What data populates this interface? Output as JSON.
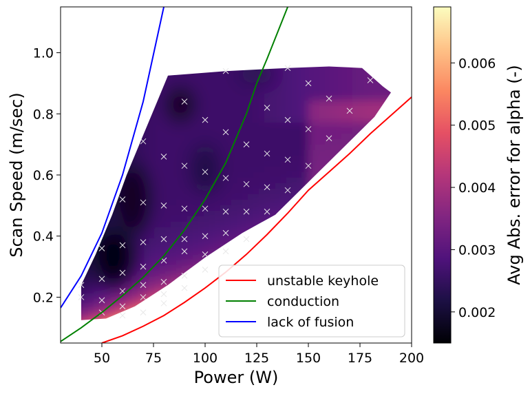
{
  "chart_data": {
    "type": "heatmap",
    "title": "",
    "xlabel": "Power (W)",
    "ylabel": "Scan Speed (m/sec)",
    "xlim": [
      30,
      200
    ],
    "ylim": [
      0.05,
      1.15
    ],
    "xticks": [
      50,
      75,
      100,
      125,
      150,
      175,
      200
    ],
    "yticks": [
      0.2,
      0.4,
      0.6,
      0.8,
      1.0
    ],
    "xtick_labels": [
      "50",
      "75",
      "100",
      "125",
      "150",
      "175",
      "200"
    ],
    "ytick_labels": [
      "0.2",
      "0.4",
      "0.6",
      "0.8",
      "1.0"
    ],
    "colorbar": {
      "label": "Avg Abs. error for alpha (-)",
      "colormap": "magma",
      "range": [
        0.0015,
        0.0069
      ],
      "ticks": [
        0.002,
        0.003,
        0.004,
        0.005,
        0.006
      ],
      "tick_labels": [
        "0.002",
        "0.003",
        "0.004",
        "0.005",
        "0.006"
      ]
    },
    "region": {
      "boundary": [
        [
          40,
          0.125
        ],
        [
          40,
          0.24
        ],
        [
          47,
          0.34
        ],
        [
          55,
          0.47
        ],
        [
          62,
          0.6
        ],
        [
          70,
          0.73
        ],
        [
          78,
          0.86
        ],
        [
          82,
          0.925
        ],
        [
          110,
          0.94
        ],
        [
          140,
          0.95
        ],
        [
          160,
          0.955
        ],
        [
          176,
          0.95
        ],
        [
          186,
          0.89
        ],
        [
          190,
          0.87
        ],
        [
          182,
          0.79
        ],
        [
          170,
          0.71
        ],
        [
          158,
          0.63
        ],
        [
          146,
          0.55
        ],
        [
          134,
          0.47
        ],
        [
          118,
          0.41
        ],
        [
          100,
          0.33
        ],
        [
          82,
          0.24
        ],
        [
          66,
          0.17
        ],
        [
          52,
          0.13
        ]
      ],
      "dark_blobs": [
        {
          "center": [
            56,
            0.33
          ],
          "radius": [
            9,
            0.09
          ],
          "value": 0.0016
        },
        {
          "center": [
            65,
            0.52
          ],
          "radius": [
            8,
            0.11
          ],
          "value": 0.0018
        },
        {
          "center": [
            88,
            0.83
          ],
          "radius": [
            6,
            0.05
          ],
          "value": 0.0017
        },
        {
          "center": [
            100,
            0.62
          ],
          "radius": [
            7,
            0.08
          ],
          "value": 0.0022
        },
        {
          "center": [
            125,
            0.93
          ],
          "radius": [
            8,
            0.03
          ],
          "value": 0.0023
        }
      ]
    },
    "sample_points": [
      [
        40,
        0.2
      ],
      [
        40,
        0.24
      ],
      [
        50,
        0.15
      ],
      [
        50,
        0.19
      ],
      [
        50,
        0.26
      ],
      [
        50,
        0.36
      ],
      [
        60,
        0.14
      ],
      [
        60,
        0.17
      ],
      [
        60,
        0.22
      ],
      [
        60,
        0.28
      ],
      [
        60,
        0.37
      ],
      [
        60,
        0.52
      ],
      [
        70,
        0.15
      ],
      [
        70,
        0.2
      ],
      [
        70,
        0.24
      ],
      [
        70,
        0.3
      ],
      [
        70,
        0.38
      ],
      [
        70,
        0.51
      ],
      [
        70,
        0.71
      ],
      [
        80,
        0.18
      ],
      [
        80,
        0.21
      ],
      [
        80,
        0.25
      ],
      [
        80,
        0.32
      ],
      [
        80,
        0.39
      ],
      [
        80,
        0.5
      ],
      [
        80,
        0.66
      ],
      [
        90,
        0.23
      ],
      [
        90,
        0.27
      ],
      [
        90,
        0.35
      ],
      [
        90,
        0.39
      ],
      [
        90,
        0.49
      ],
      [
        90,
        0.63
      ],
      [
        90,
        0.84
      ],
      [
        100,
        0.29
      ],
      [
        100,
        0.34
      ],
      [
        100,
        0.4
      ],
      [
        100,
        0.49
      ],
      [
        100,
        0.61
      ],
      [
        100,
        0.78
      ],
      [
        110,
        0.35
      ],
      [
        110,
        0.41
      ],
      [
        110,
        0.48
      ],
      [
        110,
        0.59
      ],
      [
        110,
        0.74
      ],
      [
        110,
        0.94
      ],
      [
        120,
        0.39
      ],
      [
        120,
        0.48
      ],
      [
        120,
        0.57
      ],
      [
        120,
        0.7
      ],
      [
        130,
        0.48
      ],
      [
        130,
        0.56
      ],
      [
        130,
        0.67
      ],
      [
        130,
        0.82
      ],
      [
        140,
        0.55
      ],
      [
        140,
        0.65
      ],
      [
        140,
        0.78
      ],
      [
        140,
        0.95
      ],
      [
        150,
        0.63
      ],
      [
        150,
        0.75
      ],
      [
        150,
        0.9
      ],
      [
        160,
        0.72
      ],
      [
        160,
        0.85
      ],
      [
        170,
        0.81
      ],
      [
        180,
        0.91
      ]
    ],
    "series": [
      {
        "name": "unstable keyhole",
        "color": "#ff0000",
        "points": [
          [
            50,
            0.05
          ],
          [
            60,
            0.074
          ],
          [
            70,
            0.105
          ],
          [
            80,
            0.14
          ],
          [
            90,
            0.183
          ],
          [
            100,
            0.23
          ],
          [
            110,
            0.282
          ],
          [
            120,
            0.34
          ],
          [
            130,
            0.405
          ],
          [
            140,
            0.475
          ],
          [
            150,
            0.55
          ],
          [
            160,
            0.61
          ],
          [
            170,
            0.67
          ],
          [
            180,
            0.735
          ],
          [
            190,
            0.795
          ],
          [
            200,
            0.855
          ]
        ]
      },
      {
        "name": "conduction",
        "color": "#008000",
        "points": [
          [
            30,
            0.055
          ],
          [
            40,
            0.1
          ],
          [
            50,
            0.15
          ],
          [
            60,
            0.205
          ],
          [
            70,
            0.265
          ],
          [
            80,
            0.335
          ],
          [
            90,
            0.42
          ],
          [
            100,
            0.52
          ],
          [
            110,
            0.64
          ],
          [
            120,
            0.8
          ],
          [
            125,
            0.9
          ],
          [
            130,
            0.98
          ],
          [
            140,
            1.15
          ]
        ]
      },
      {
        "name": "lack of fusion",
        "color": "#0000ff",
        "points": [
          [
            30,
            0.165
          ],
          [
            40,
            0.27
          ],
          [
            50,
            0.41
          ],
          [
            60,
            0.6
          ],
          [
            70,
            0.84
          ],
          [
            80,
            1.15
          ]
        ]
      }
    ],
    "legend": {
      "position": "bottom-right",
      "entries": [
        "unstable keyhole",
        "conduction",
        "lack of fusion"
      ]
    }
  }
}
